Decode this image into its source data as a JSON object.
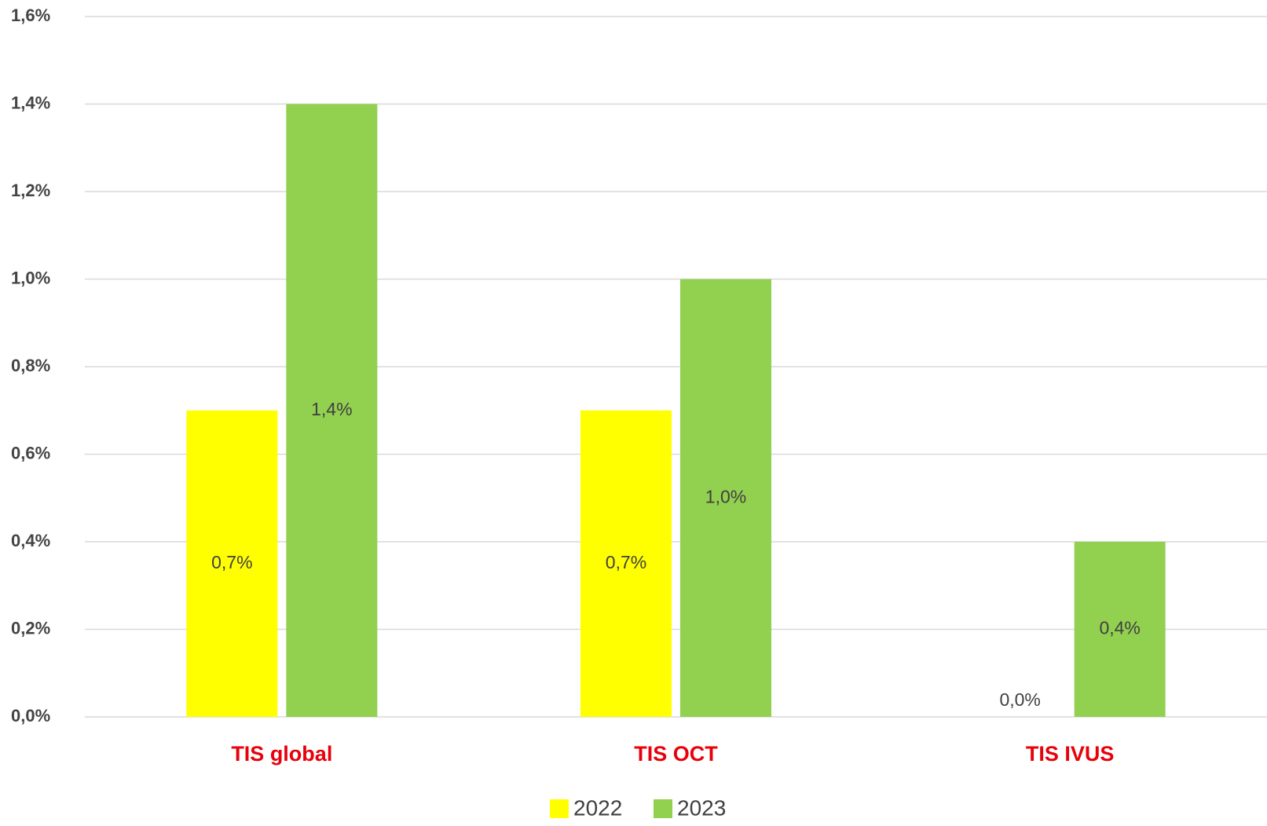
{
  "chart_data": {
    "type": "bar",
    "categories": [
      "TIS global",
      "TIS OCT",
      "TIS IVUS"
    ],
    "series": [
      {
        "name": "2022",
        "color": "#ffff00",
        "values": [
          0.7,
          0.7,
          0.0
        ],
        "value_labels": [
          "0,7%",
          "0,7%",
          "0,0%"
        ]
      },
      {
        "name": "2023",
        "color": "#92d050",
        "values": [
          1.4,
          1.0,
          0.4
        ],
        "value_labels": [
          "1,4%",
          "1,0%",
          "0,4%"
        ]
      }
    ],
    "ylim": [
      0,
      1.6
    ],
    "yticks": [
      {
        "value": 0,
        "label": "0,0%"
      },
      {
        "value": 0.2,
        "label": "0,2%"
      },
      {
        "value": 0.4,
        "label": "0,4%"
      },
      {
        "value": 0.6,
        "label": "0,6%"
      },
      {
        "value": 0.8,
        "label": "0,8%"
      },
      {
        "value": 1.0,
        "label": "1,0%"
      },
      {
        "value": 1.2,
        "label": "1,2%"
      },
      {
        "value": 1.4,
        "label": "1,4%"
      },
      {
        "value": 1.6,
        "label": "1,6%"
      }
    ],
    "grid": true,
    "legend": "bottom"
  }
}
